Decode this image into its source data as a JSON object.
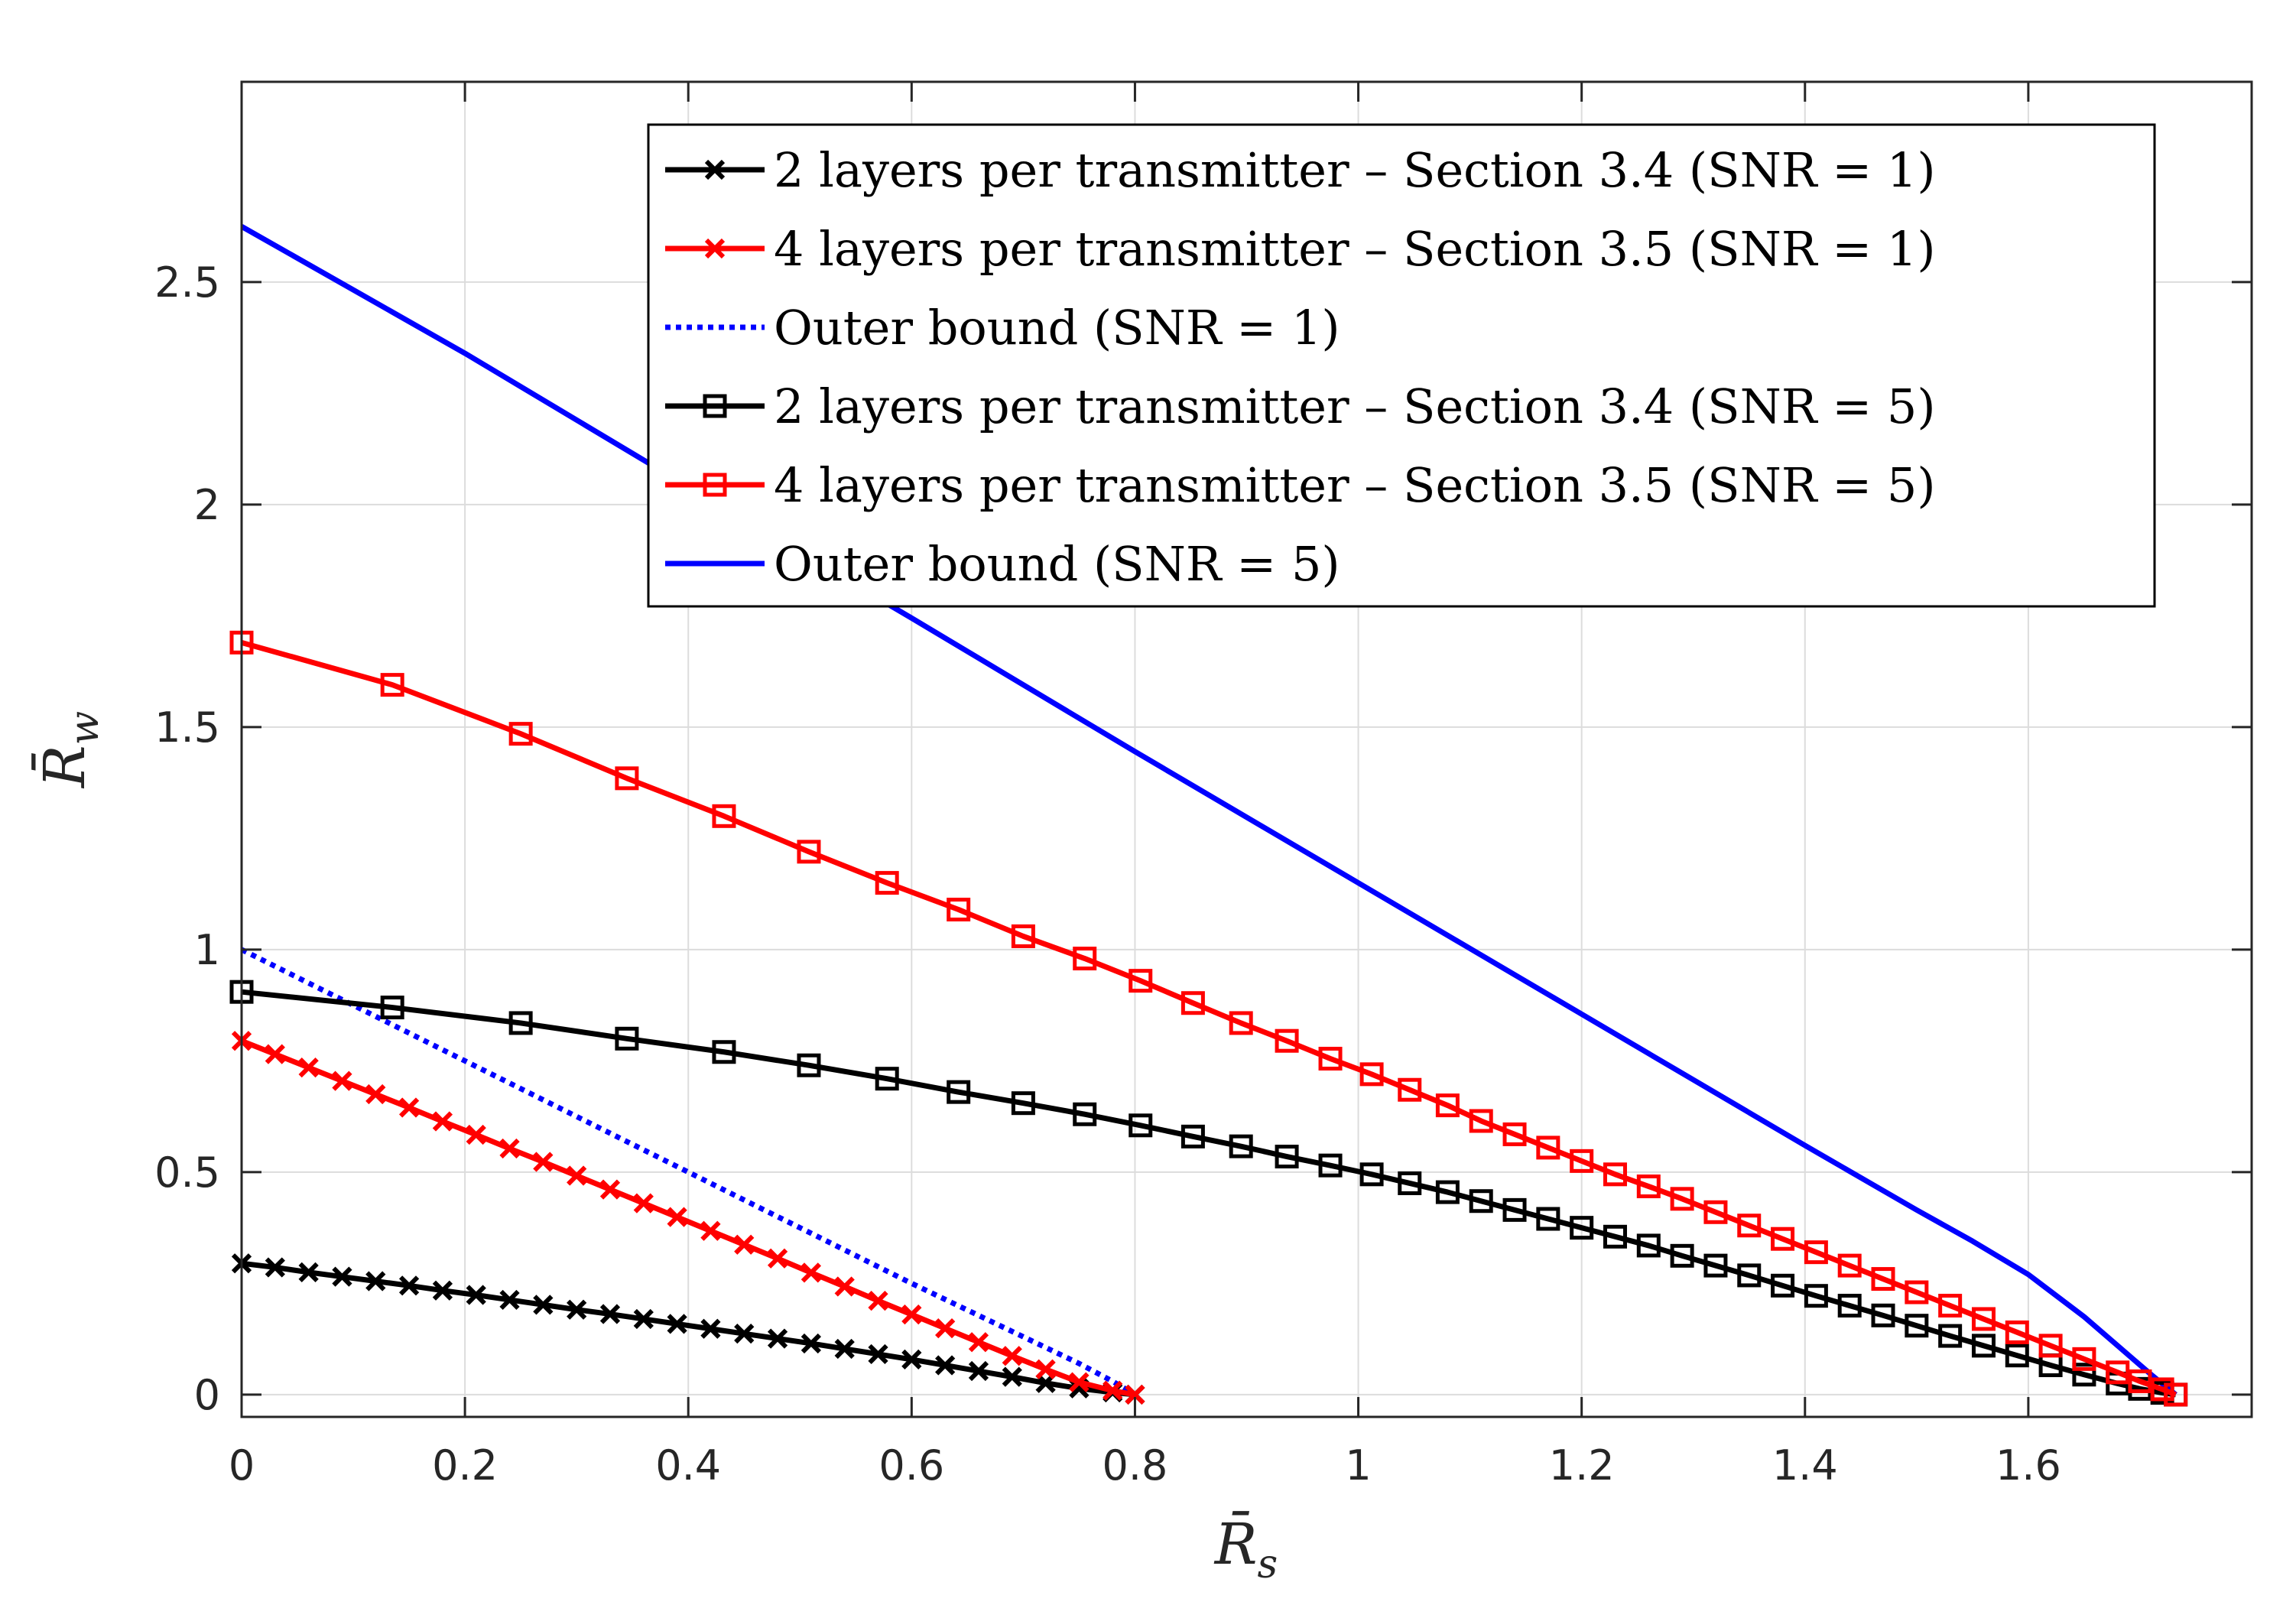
{
  "chart_data": {
    "type": "line",
    "title": "",
    "xlabel": "R̄",
    "xlabel_sub": "s",
    "ylabel": "R̄",
    "ylabel_sub": "w",
    "xlim": [
      0,
      1.8
    ],
    "ylim": [
      -0.05,
      2.95
    ],
    "grid": true,
    "legend_position": "top-right",
    "xticks": [
      0,
      0.2,
      0.4,
      0.6,
      0.8,
      1,
      1.2,
      1.4,
      1.6
    ],
    "xtick_labels": [
      "0",
      "0.2",
      "0.4",
      "0.6",
      "0.8",
      "1",
      "1.2",
      "1.4",
      "1.6"
    ],
    "yticks": [
      0,
      0.5,
      1,
      1.5,
      2,
      2.5
    ],
    "ytick_labels": [
      "0",
      "0.5",
      "1",
      "1.5",
      "2",
      "2.5"
    ],
    "series": [
      {
        "name": "2 layers per transmitter – Section 3.4 (SNR = 1)",
        "color": "#000000",
        "line": "solid",
        "marker": "x",
        "x": [
          0,
          0.03,
          0.06,
          0.09,
          0.12,
          0.15,
          0.18,
          0.21,
          0.24,
          0.27,
          0.3,
          0.33,
          0.36,
          0.39,
          0.42,
          0.45,
          0.48,
          0.51,
          0.54,
          0.57,
          0.6,
          0.63,
          0.66,
          0.69,
          0.72,
          0.75,
          0.78,
          0.8
        ],
        "y": [
          0.295,
          0.286,
          0.275,
          0.265,
          0.255,
          0.245,
          0.234,
          0.224,
          0.213,
          0.202,
          0.191,
          0.181,
          0.17,
          0.159,
          0.148,
          0.137,
          0.126,
          0.115,
          0.103,
          0.091,
          0.079,
          0.066,
          0.053,
          0.04,
          0.026,
          0.014,
          0.005,
          0.0
        ]
      },
      {
        "name": "4 layers per transmitter – Section 3.5 (SNR = 1)",
        "color": "#ff0000",
        "line": "solid",
        "marker": "x",
        "x": [
          0,
          0.03,
          0.06,
          0.09,
          0.12,
          0.15,
          0.18,
          0.21,
          0.24,
          0.27,
          0.3,
          0.33,
          0.36,
          0.39,
          0.42,
          0.45,
          0.48,
          0.51,
          0.54,
          0.57,
          0.6,
          0.63,
          0.66,
          0.69,
          0.72,
          0.75,
          0.78,
          0.8
        ],
        "y": [
          0.795,
          0.765,
          0.735,
          0.705,
          0.675,
          0.645,
          0.614,
          0.584,
          0.553,
          0.523,
          0.492,
          0.461,
          0.43,
          0.399,
          0.368,
          0.337,
          0.306,
          0.274,
          0.243,
          0.211,
          0.18,
          0.149,
          0.118,
          0.087,
          0.057,
          0.028,
          0.009,
          0.0
        ]
      },
      {
        "name": "Outer bound (SNR = 1)",
        "color": "#0000ff",
        "line": "dotted",
        "marker": "none",
        "x": [
          0,
          0.1,
          0.2,
          0.3,
          0.4,
          0.5,
          0.6,
          0.7,
          0.75,
          0.78,
          0.8
        ],
        "y": [
          1.0,
          0.875,
          0.75,
          0.625,
          0.5,
          0.375,
          0.25,
          0.13,
          0.07,
          0.03,
          0.0
        ]
      },
      {
        "name": "2 layers per transmitter – Section 3.4 (SNR = 5)",
        "color": "#000000",
        "line": "solid",
        "marker": "square",
        "x": [
          0,
          0.135,
          0.25,
          0.345,
          0.432,
          0.508,
          0.578,
          0.642,
          0.7,
          0.755,
          0.805,
          0.852,
          0.895,
          0.936,
          0.975,
          1.012,
          1.046,
          1.08,
          1.11,
          1.14,
          1.17,
          1.2,
          1.23,
          1.26,
          1.29,
          1.32,
          1.35,
          1.38,
          1.41,
          1.44,
          1.47,
          1.5,
          1.53,
          1.56,
          1.59,
          1.62,
          1.65,
          1.68,
          1.7,
          1.72,
          1.732
        ],
        "y": [
          0.905,
          0.87,
          0.835,
          0.8,
          0.77,
          0.74,
          0.71,
          0.68,
          0.655,
          0.63,
          0.605,
          0.58,
          0.558,
          0.535,
          0.515,
          0.495,
          0.475,
          0.455,
          0.435,
          0.415,
          0.395,
          0.375,
          0.355,
          0.335,
          0.312,
          0.29,
          0.268,
          0.245,
          0.222,
          0.2,
          0.178,
          0.155,
          0.132,
          0.11,
          0.088,
          0.066,
          0.045,
          0.025,
          0.013,
          0.004,
          0.0
        ]
      },
      {
        "name": "4 layers per transmitter – Section 3.5 (SNR = 5)",
        "color": "#ff0000",
        "line": "solid",
        "marker": "square",
        "x": [
          0,
          0.135,
          0.25,
          0.345,
          0.432,
          0.508,
          0.578,
          0.642,
          0.7,
          0.755,
          0.805,
          0.852,
          0.895,
          0.936,
          0.975,
          1.012,
          1.046,
          1.08,
          1.11,
          1.14,
          1.17,
          1.2,
          1.23,
          1.26,
          1.29,
          1.32,
          1.35,
          1.38,
          1.41,
          1.44,
          1.47,
          1.5,
          1.53,
          1.56,
          1.59,
          1.62,
          1.65,
          1.68,
          1.7,
          1.72,
          1.732
        ],
        "y": [
          1.69,
          1.595,
          1.485,
          1.385,
          1.3,
          1.22,
          1.15,
          1.09,
          1.03,
          0.98,
          0.93,
          0.88,
          0.835,
          0.795,
          0.755,
          0.72,
          0.685,
          0.65,
          0.615,
          0.585,
          0.555,
          0.525,
          0.495,
          0.468,
          0.44,
          0.41,
          0.38,
          0.35,
          0.32,
          0.29,
          0.26,
          0.23,
          0.2,
          0.17,
          0.14,
          0.11,
          0.08,
          0.05,
          0.03,
          0.012,
          0.0
        ]
      },
      {
        "name": "Outer bound (SNR = 5)",
        "color": "#0000ff",
        "line": "solid",
        "marker": "none",
        "x": [
          0,
          0.2,
          0.4,
          0.6,
          0.8,
          1.0,
          1.2,
          1.4,
          1.5,
          1.55,
          1.6,
          1.65,
          1.68,
          1.71,
          1.732
        ],
        "y": [
          2.625,
          2.34,
          2.04,
          1.745,
          1.445,
          1.15,
          0.855,
          0.56,
          0.415,
          0.345,
          0.27,
          0.175,
          0.11,
          0.045,
          0.0
        ]
      }
    ]
  }
}
